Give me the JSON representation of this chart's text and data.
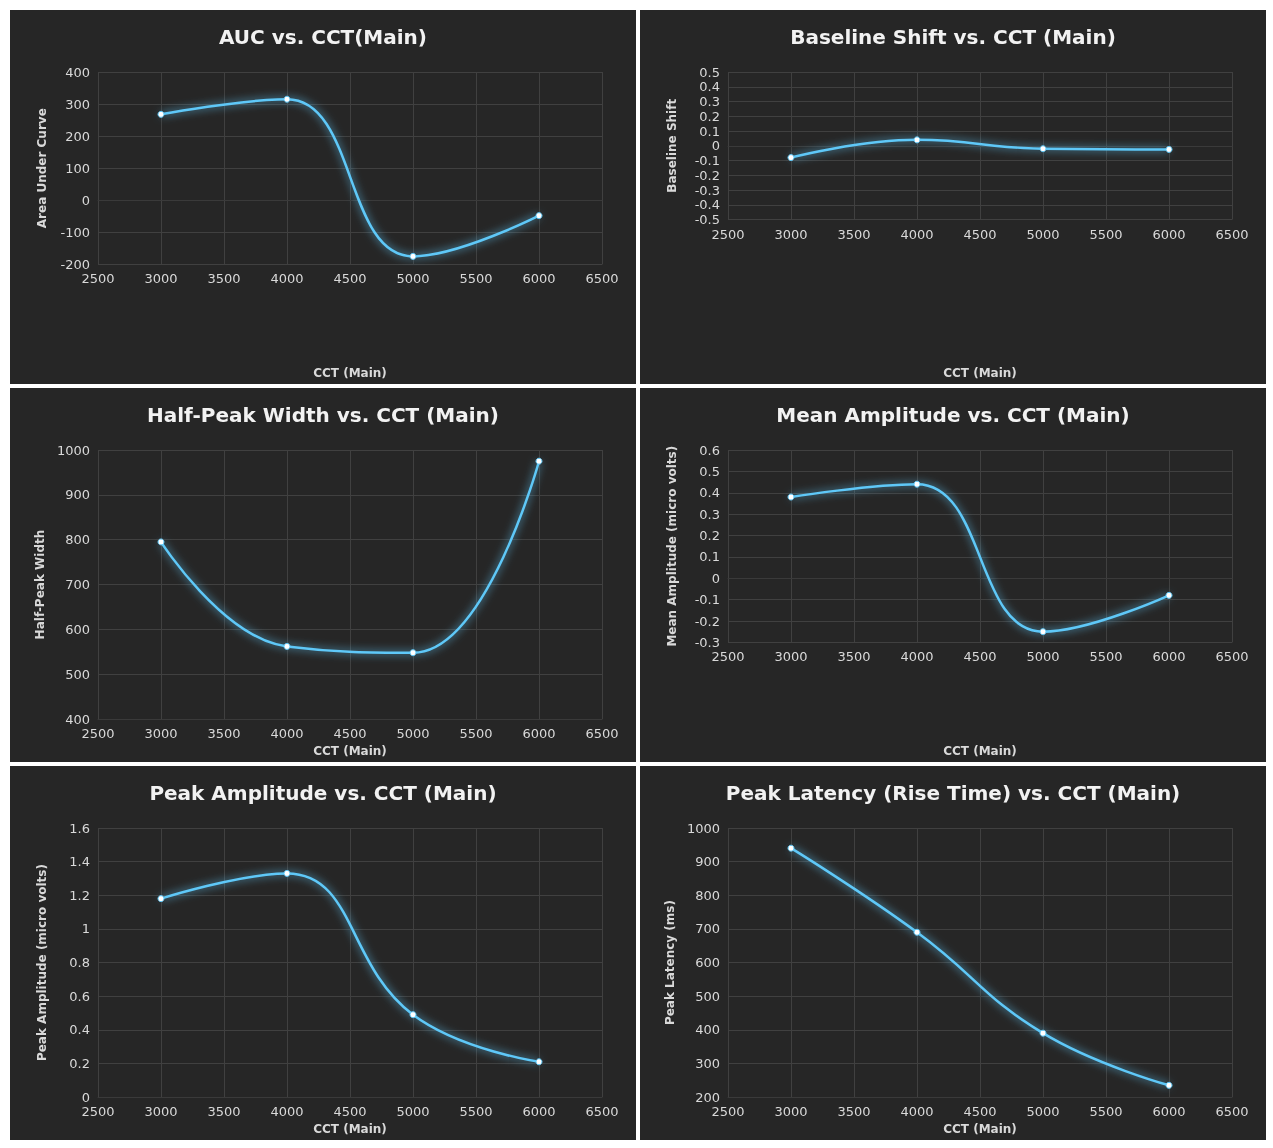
{
  "chart_data": [
    {
      "type": "line",
      "title": "AUC vs. CCT(Main)",
      "xlabel": "CCT (Main)",
      "ylabel": "Area Under Curve",
      "x": [
        3000,
        4000,
        5000,
        6000
      ],
      "series": [
        {
          "color": "#5ec8f8",
          "values": [
            268,
            315,
            -175,
            -48
          ]
        }
      ],
      "xlim": [
        2500,
        6500
      ],
      "xticks": [
        2500,
        3000,
        3500,
        4000,
        4500,
        5000,
        5500,
        6000,
        6500
      ],
      "ylim": [
        -200,
        400
      ],
      "yticks": [
        -200,
        -100,
        0,
        100,
        200,
        300,
        400
      ],
      "grid": true,
      "marker": "circle",
      "line_style": "solid"
    },
    {
      "type": "line",
      "title": "Baseline Shift vs. CCT (Main)",
      "xlabel": "CCT (Main)",
      "ylabel": "Baseline Shift",
      "x": [
        3000,
        4000,
        5000,
        6000
      ],
      "series": [
        {
          "color": "#5ec8f8",
          "values": [
            -0.08,
            0.04,
            -0.02,
            -0.025
          ]
        }
      ],
      "xlim": [
        2500,
        6500
      ],
      "xticks": [
        2500,
        3000,
        3500,
        4000,
        4500,
        5000,
        5500,
        6000,
        6500
      ],
      "ylim": [
        -0.5,
        0.5
      ],
      "yticks": [
        -0.5,
        -0.4,
        -0.3,
        -0.2,
        -0.1,
        0,
        0.1,
        0.2,
        0.3,
        0.4,
        0.5
      ],
      "grid": true,
      "marker": "circle",
      "line_style": "solid"
    },
    {
      "type": "line",
      "title": "Half-Peak Width vs. CCT (Main)",
      "xlabel": "CCT (Main)",
      "ylabel": "Half-Peak Width",
      "x": [
        3000,
        4000,
        5000,
        6000
      ],
      "series": [
        {
          "color": "#5ec8f8",
          "values": [
            795,
            562,
            548,
            975
          ]
        }
      ],
      "xlim": [
        2500,
        6500
      ],
      "xticks": [
        2500,
        3000,
        3500,
        4000,
        4500,
        5000,
        5500,
        6000,
        6500
      ],
      "ylim": [
        400,
        1000
      ],
      "yticks": [
        400,
        500,
        600,
        700,
        800,
        900,
        1000
      ],
      "grid": true,
      "marker": "circle",
      "line_style": "solid"
    },
    {
      "type": "line",
      "title": "Mean Amplitude vs. CCT (Main)",
      "xlabel": "CCT (Main)",
      "ylabel": "Mean Amplitude (micro volts)",
      "x": [
        3000,
        4000,
        5000,
        6000
      ],
      "series": [
        {
          "color": "#5ec8f8",
          "values": [
            0.38,
            0.44,
            -0.25,
            -0.08
          ]
        }
      ],
      "xlim": [
        2500,
        6500
      ],
      "xticks": [
        2500,
        3000,
        3500,
        4000,
        4500,
        5000,
        5500,
        6000,
        6500
      ],
      "ylim": [
        -0.3,
        0.6
      ],
      "yticks": [
        -0.3,
        -0.2,
        -0.1,
        0,
        0.1,
        0.2,
        0.3,
        0.4,
        0.5,
        0.6
      ],
      "grid": true,
      "marker": "circle",
      "line_style": "solid"
    },
    {
      "type": "line",
      "title": "Peak Amplitude vs. CCT (Main)",
      "xlabel": "CCT (Main)",
      "ylabel": "Peak Amplitude (micro volts)",
      "x": [
        3000,
        4000,
        5000,
        6000
      ],
      "series": [
        {
          "color": "#5ec8f8",
          "values": [
            1.18,
            1.33,
            0.49,
            0.21
          ]
        }
      ],
      "xlim": [
        2500,
        6500
      ],
      "xticks": [
        2500,
        3000,
        3500,
        4000,
        4500,
        5000,
        5500,
        6000,
        6500
      ],
      "ylim": [
        0,
        1.6
      ],
      "yticks": [
        0,
        0.2,
        0.4,
        0.6,
        0.8,
        1,
        1.2,
        1.4,
        1.6
      ],
      "grid": true,
      "marker": "circle",
      "line_style": "solid"
    },
    {
      "type": "line",
      "title": "Peak Latency (Rise Time) vs. CCT (Main)",
      "xlabel": "CCT (Main)",
      "ylabel": "Peak Latency (ms)",
      "x": [
        3000,
        4000,
        5000,
        6000
      ],
      "series": [
        {
          "color": "#5ec8f8",
          "values": [
            940,
            690,
            390,
            235
          ]
        }
      ],
      "xlim": [
        2500,
        6500
      ],
      "xticks": [
        2500,
        3000,
        3500,
        4000,
        4500,
        5000,
        5500,
        6000,
        6500
      ],
      "ylim": [
        200,
        1000
      ],
      "yticks": [
        200,
        300,
        400,
        500,
        600,
        700,
        800,
        900,
        1000
      ],
      "grid": true,
      "marker": "circle",
      "line_style": "solid"
    }
  ]
}
